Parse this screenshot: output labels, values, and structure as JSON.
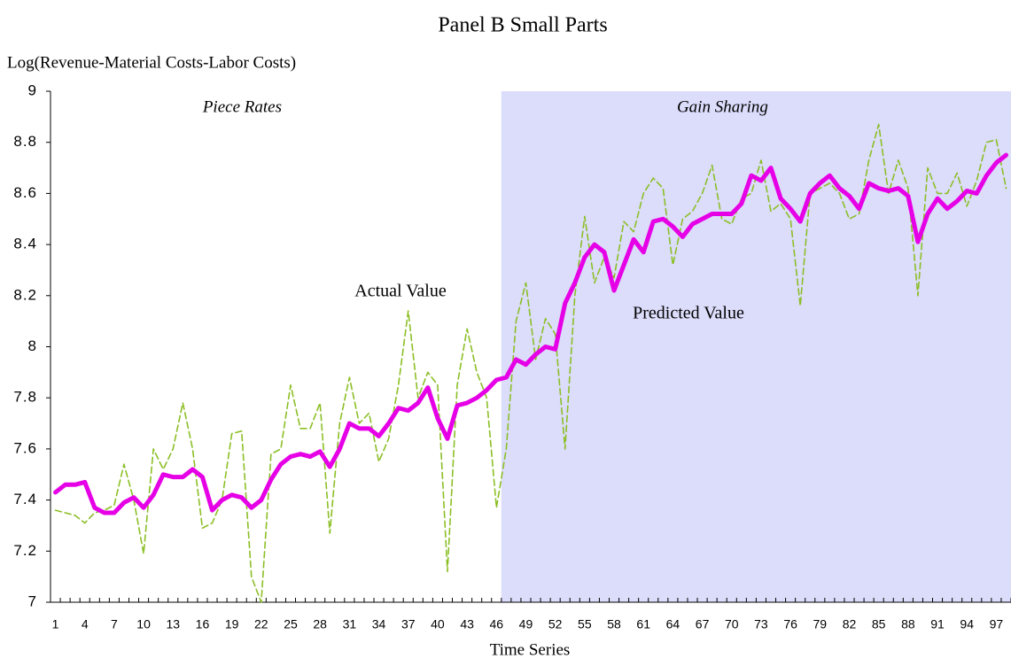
{
  "chart_data": {
    "type": "line",
    "title": "Panel B Small Parts",
    "y_label": "Log(Revenue-Material Costs-Labor Costs)",
    "x_label": "Time Series",
    "categories": [
      "1",
      null,
      null,
      "4",
      null,
      null,
      "7",
      null,
      null,
      "10",
      null,
      null,
      "13",
      null,
      null,
      "16",
      null,
      null,
      "19",
      null,
      null,
      "22",
      null,
      null,
      "25",
      null,
      null,
      "28",
      null,
      null,
      "31",
      null,
      null,
      "34",
      null,
      null,
      "37",
      null,
      null,
      "40",
      null,
      null,
      "43",
      null,
      null,
      "46",
      null,
      null,
      "49",
      null,
      null,
      "52",
      null,
      null,
      "55",
      null,
      null,
      "58",
      null,
      null,
      "61",
      null,
      null,
      "64",
      null,
      null,
      "67",
      null,
      null,
      "70",
      null,
      null,
      "73",
      null,
      null,
      "76",
      null,
      null,
      "79",
      null,
      null,
      "82",
      null,
      null,
      "85",
      null,
      null,
      "88",
      null,
      null,
      "91",
      null,
      null,
      "94",
      null,
      null,
      "97",
      null
    ],
    "series": [
      {
        "name": "Actual Value",
        "color": "#8cbf26",
        "dashed": true,
        "values": [
          7.36,
          7.35,
          7.34,
          7.31,
          7.35,
          7.36,
          7.38,
          7.54,
          7.4,
          7.19,
          7.6,
          7.52,
          7.6,
          7.78,
          7.6,
          7.29,
          7.31,
          7.4,
          7.66,
          7.67,
          7.1,
          7.0,
          7.58,
          7.6,
          7.85,
          7.68,
          7.68,
          7.78,
          7.27,
          7.7,
          7.88,
          7.7,
          7.74,
          7.55,
          7.64,
          7.85,
          8.14,
          7.8,
          7.9,
          7.85,
          7.12,
          7.85,
          8.07,
          7.9,
          7.8,
          7.37,
          7.6,
          8.1,
          8.25,
          7.95,
          8.11,
          8.05,
          7.6,
          8.2,
          8.51,
          8.25,
          8.35,
          8.27,
          8.49,
          8.45,
          8.6,
          8.66,
          8.62,
          8.32,
          8.5,
          8.53,
          8.6,
          8.71,
          8.5,
          8.48,
          8.58,
          8.6,
          8.73,
          8.53,
          8.56,
          8.5,
          8.16,
          8.6,
          8.62,
          8.64,
          8.6,
          8.5,
          8.52,
          8.73,
          8.87,
          8.6,
          8.73,
          8.62,
          8.2,
          8.7,
          8.6,
          8.6,
          8.68,
          8.55,
          8.65,
          8.8,
          8.81,
          8.62
        ]
      },
      {
        "name": "Predicted Value",
        "color": "#e600e6",
        "dashed": false,
        "values": [
          7.43,
          7.46,
          7.46,
          7.47,
          7.37,
          7.35,
          7.35,
          7.39,
          7.41,
          7.37,
          7.42,
          7.5,
          7.49,
          7.49,
          7.52,
          7.49,
          7.36,
          7.4,
          7.42,
          7.41,
          7.37,
          7.4,
          7.48,
          7.54,
          7.57,
          7.58,
          7.57,
          7.59,
          7.53,
          7.6,
          7.7,
          7.68,
          7.68,
          7.65,
          7.7,
          7.76,
          7.75,
          7.78,
          7.84,
          7.72,
          7.64,
          7.77,
          7.78,
          7.8,
          7.83,
          7.87,
          7.88,
          7.95,
          7.93,
          7.97,
          8.0,
          7.99,
          8.17,
          8.25,
          8.35,
          8.4,
          8.37,
          8.22,
          8.32,
          8.42,
          8.37,
          8.49,
          8.5,
          8.47,
          8.43,
          8.48,
          8.5,
          8.52,
          8.52,
          8.52,
          8.56,
          8.67,
          8.65,
          8.7,
          8.58,
          8.54,
          8.49,
          8.6,
          8.64,
          8.67,
          8.62,
          8.59,
          8.54,
          8.64,
          8.62,
          8.61,
          8.62,
          8.59,
          8.41,
          8.52,
          8.58,
          8.54,
          8.57,
          8.61,
          8.6,
          8.67,
          8.72,
          8.75
        ]
      }
    ],
    "regions": [
      {
        "label": "Piece Rates",
        "from": 1,
        "to": 46,
        "color": "#ffffff"
      },
      {
        "label": "Gain Sharing",
        "from": 47,
        "to": 98,
        "color": "#dcdcfb"
      }
    ],
    "ylim": [
      7,
      9
    ],
    "yticks": [
      7,
      7.2,
      7.4,
      7.6,
      7.8,
      8,
      8.2,
      8.4,
      8.6,
      8.8,
      9
    ]
  }
}
